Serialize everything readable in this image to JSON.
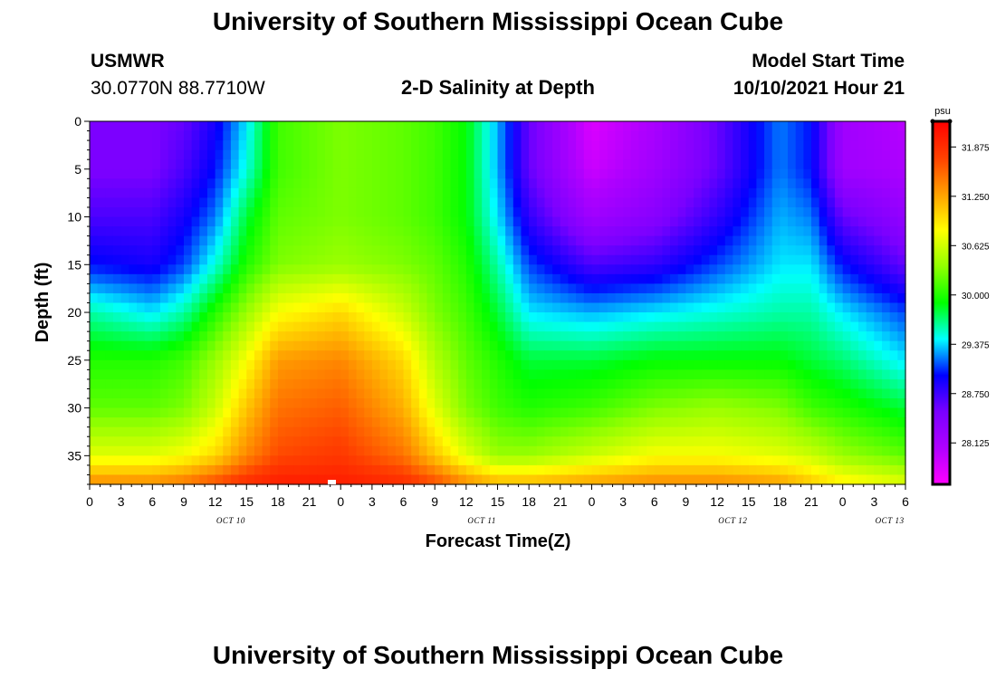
{
  "header": {
    "title": "University of Southern Mississippi Ocean Cube",
    "station": "USMWR",
    "coords": "30.0770N  88.7710W",
    "chart_title": "2-D Salinity at Depth",
    "model_label": "Model Start Time",
    "model_time": "10/10/2021 Hour 21"
  },
  "footer": {
    "title": "University of Southern Mississippi Ocean Cube"
  },
  "chart_data": {
    "type": "heatmap",
    "title": "2-D Salinity at Depth",
    "xlabel": "Forecast Time(Z)",
    "ylabel": "Depth (ft)",
    "x_tick_labels": [
      "0",
      "3",
      "6",
      "9",
      "12",
      "15",
      "18",
      "21",
      "0",
      "3",
      "6",
      "9",
      "12",
      "15",
      "18",
      "21",
      "0",
      "3",
      "6",
      "9",
      "12",
      "15",
      "18",
      "21",
      "0",
      "3",
      "6"
    ],
    "date_labels": [
      {
        "label": "OCT 10",
        "tick_index": 4.5
      },
      {
        "label": "OCT 11",
        "tick_index": 12.5
      },
      {
        "label": "OCT 12",
        "tick_index": 20.5
      },
      {
        "label": "OCT 13",
        "tick_index": 25.5
      }
    ],
    "xlim_hours": [
      0,
      78
    ],
    "y_ticks": [
      0,
      5,
      10,
      15,
      20,
      25,
      30,
      35
    ],
    "ylim_ft": [
      0,
      38
    ],
    "colorbar": {
      "unit": "psu",
      "ticks": [
        "31.875",
        "31.250",
        "30.625",
        "30.000",
        "29.375",
        "28.750",
        "28.125"
      ],
      "range": [
        27.6,
        32.2
      ],
      "colors": [
        "#ff00ff",
        "#b000ff",
        "#7a00ff",
        "#0000ff",
        "#00ffff",
        "#00ff00",
        "#90ff00",
        "#ffff00",
        "#ffa000",
        "#ff4000",
        "#ff0000"
      ]
    },
    "salinity_psu": {
      "hours": [
        0,
        6,
        9,
        12,
        15,
        18,
        24,
        30,
        33,
        36,
        39,
        42,
        48,
        54,
        60,
        66,
        69,
        72,
        78
      ],
      "depth_ft": [
        0,
        5,
        10,
        15,
        20,
        25,
        30,
        35,
        38
      ],
      "values": [
        [
          28.5,
          28.5,
          28.6,
          28.9,
          29.4,
          30.1,
          30.3,
          30.2,
          30.1,
          29.9,
          29.3,
          28.6,
          27.8,
          28.1,
          28.6,
          29.2,
          29.0,
          28.2,
          28.0
        ],
        [
          28.5,
          28.5,
          28.7,
          29.0,
          29.5,
          30.1,
          30.3,
          30.2,
          30.1,
          29.9,
          29.3,
          28.6,
          27.9,
          28.2,
          28.6,
          29.2,
          29.0,
          28.2,
          28.1
        ],
        [
          28.7,
          28.7,
          28.9,
          29.2,
          29.8,
          30.2,
          30.3,
          30.2,
          30.1,
          29.9,
          29.4,
          28.8,
          28.2,
          28.4,
          28.8,
          29.3,
          29.2,
          28.6,
          28.3
        ],
        [
          29.0,
          28.9,
          29.1,
          29.5,
          30.0,
          30.3,
          30.4,
          30.3,
          30.2,
          30.0,
          29.6,
          29.1,
          28.7,
          28.8,
          29.1,
          29.4,
          29.4,
          29.0,
          28.6
        ],
        [
          29.6,
          29.4,
          29.6,
          30.0,
          30.4,
          30.8,
          31.0,
          30.6,
          30.3,
          30.1,
          29.8,
          29.4,
          29.3,
          29.4,
          29.5,
          29.6,
          29.6,
          29.4,
          29.1
        ],
        [
          30.0,
          30.0,
          30.1,
          30.4,
          30.8,
          31.3,
          31.4,
          31.0,
          30.5,
          30.2,
          30.0,
          29.8,
          29.8,
          29.9,
          29.9,
          29.9,
          29.8,
          29.7,
          29.4
        ],
        [
          30.2,
          30.2,
          30.3,
          30.6,
          31.1,
          31.5,
          31.6,
          31.2,
          30.7,
          30.3,
          30.1,
          30.0,
          30.1,
          30.3,
          30.4,
          30.3,
          30.1,
          30.0,
          29.8
        ],
        [
          30.7,
          30.7,
          30.8,
          31.0,
          31.4,
          31.7,
          31.8,
          31.5,
          31.1,
          30.7,
          30.4,
          30.4,
          30.6,
          30.8,
          30.8,
          30.7,
          30.6,
          30.4,
          30.2
        ],
        [
          31.4,
          31.4,
          31.5,
          31.7,
          31.9,
          32.0,
          32.0,
          31.9,
          31.7,
          31.4,
          31.2,
          31.2,
          31.3,
          31.4,
          31.4,
          31.3,
          31.1,
          30.9,
          30.7
        ]
      ]
    }
  }
}
